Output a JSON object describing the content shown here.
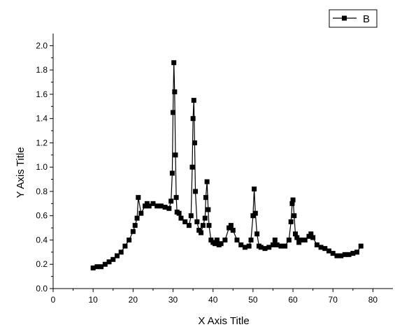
{
  "chart_data": {
    "type": "line",
    "title": "",
    "xlabel": "X Axis Title",
    "ylabel": "Y Axis Title",
    "xlim": [
      0,
      85
    ],
    "ylim": [
      0.0,
      2.1
    ],
    "xticks": [
      0,
      10,
      20,
      30,
      40,
      50,
      60,
      70,
      80
    ],
    "xtick_labels": [
      "0",
      "10",
      "20",
      "30",
      "40",
      "50",
      "60",
      "70",
      "80"
    ],
    "yticks": [
      0.0,
      0.2,
      0.4,
      0.6,
      0.8,
      1.0,
      1.2,
      1.4,
      1.6,
      1.8,
      2.0
    ],
    "ytick_labels": [
      "0.0",
      "0.2",
      "0.4",
      "0.6",
      "0.8",
      "1.0",
      "1.2",
      "1.4",
      "1.6",
      "1.8",
      "2.0"
    ],
    "grid": false,
    "legend": {
      "position": "top-right",
      "entries": [
        "B"
      ]
    },
    "series": [
      {
        "name": "B",
        "color": "#000000",
        "marker": "square",
        "x": [
          10,
          11,
          12,
          13,
          14,
          15,
          16,
          17,
          18,
          19,
          20,
          20.5,
          21,
          21.3,
          22,
          23,
          23.5,
          24,
          25,
          26,
          27,
          28,
          29,
          29.5,
          29.8,
          30,
          30.2,
          30.4,
          30.6,
          30.8,
          31,
          31.5,
          32,
          33,
          34,
          34.5,
          34.8,
          35,
          35.2,
          35.4,
          35.6,
          36,
          36.5,
          37,
          37.5,
          38,
          38.2,
          38.5,
          38.8,
          39,
          39.5,
          40,
          40.5,
          41,
          41.5,
          42,
          43,
          44,
          44.5,
          45,
          46,
          47,
          48,
          49,
          49.5,
          50,
          50.3,
          50.6,
          51,
          51.5,
          52,
          53,
          54,
          55,
          55.5,
          56,
          57,
          58,
          59,
          59.5,
          59.8,
          60,
          60.3,
          60.6,
          61,
          61.5,
          62,
          63,
          64,
          64.5,
          65,
          66,
          67,
          68,
          69,
          70,
          71,
          72,
          73,
          74,
          75,
          76,
          77
        ],
        "y": [
          0.17,
          0.18,
          0.18,
          0.2,
          0.22,
          0.24,
          0.27,
          0.3,
          0.35,
          0.4,
          0.47,
          0.52,
          0.58,
          0.75,
          0.62,
          0.68,
          0.7,
          0.68,
          0.7,
          0.68,
          0.68,
          0.67,
          0.66,
          0.72,
          0.95,
          1.45,
          1.86,
          1.62,
          1.1,
          0.75,
          0.63,
          0.62,
          0.58,
          0.55,
          0.52,
          0.6,
          1.0,
          1.4,
          1.55,
          1.2,
          0.8,
          0.55,
          0.48,
          0.46,
          0.52,
          0.58,
          0.75,
          0.88,
          0.65,
          0.52,
          0.4,
          0.38,
          0.37,
          0.4,
          0.36,
          0.37,
          0.4,
          0.5,
          0.52,
          0.48,
          0.4,
          0.36,
          0.34,
          0.35,
          0.4,
          0.6,
          0.82,
          0.62,
          0.45,
          0.35,
          0.34,
          0.33,
          0.34,
          0.36,
          0.4,
          0.36,
          0.35,
          0.35,
          0.4,
          0.55,
          0.7,
          0.73,
          0.6,
          0.45,
          0.42,
          0.38,
          0.4,
          0.4,
          0.43,
          0.45,
          0.42,
          0.36,
          0.34,
          0.33,
          0.31,
          0.29,
          0.27,
          0.27,
          0.28,
          0.28,
          0.29,
          0.3,
          0.35
        ]
      }
    ]
  }
}
